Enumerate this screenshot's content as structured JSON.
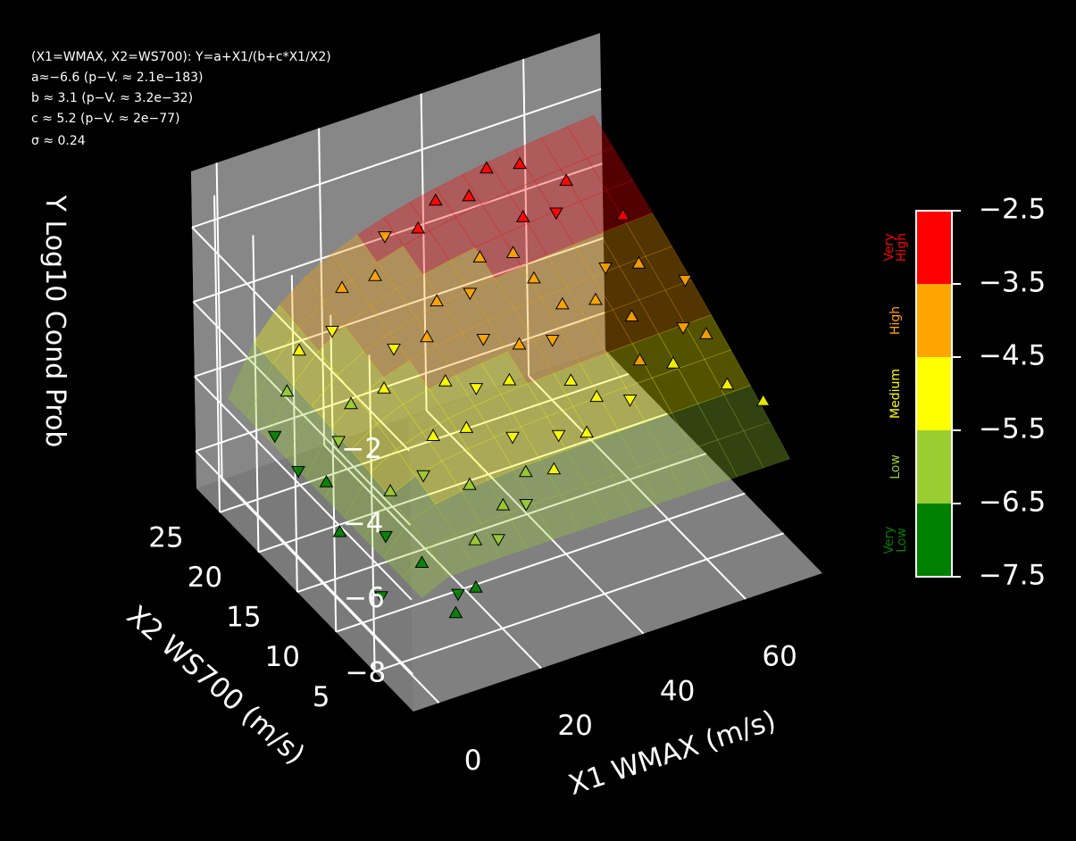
{
  "annotation": {
    "line1": "(X1=WMAX, X2=WS700): Y=a+X1/(b+c*X1/X2)",
    "line2": "a≈−6.6 (p−V. ≈ 2.1e−183)",
    "line3": "b ≈ 3.1 (p−V. ≈ 3.2e−32)",
    "line4": "c ≈ 5.2 (p−V. ≈ 2e−77)",
    "line5": "σ ≈ 0.24"
  },
  "colors": {
    "background": "#000000",
    "pane": "#808080",
    "grid": "#ffffff",
    "very_low": "#008000",
    "low": "#9acd32",
    "medium": "#ffff00",
    "high": "#ffa500",
    "very_high": "#ff0000"
  },
  "chart_data": {
    "type": "scatter",
    "projection": "3d",
    "xlabel": "X1 WMAX (m/s)",
    "ylabel": "X2 WS700 (m/s)",
    "zlabel": "Y Log10 Cond Prob",
    "x_ticks": [
      "0",
      "20",
      "40",
      "60"
    ],
    "y_ticks": [
      "5",
      "10",
      "15",
      "20",
      "25"
    ],
    "z_ticks": [
      "−8",
      "−6",
      "−4",
      "−2"
    ],
    "xlim": [
      -5,
      75
    ],
    "ylim": [
      0,
      28
    ],
    "zlim": [
      -9,
      -0.5
    ],
    "grid": true,
    "model": {
      "formula": "Y=a+X1/(b+c*X1/X2)",
      "a": -6.6,
      "b": 3.1,
      "c": 5.2,
      "sigma": 0.24
    },
    "colorbar": {
      "ticks": [
        "−2.5",
        "−3.5",
        "−4.5",
        "−5.5",
        "−6.5",
        "−7.5"
      ],
      "bands": [
        {
          "label": "Very High",
          "color": "#ff0000",
          "range": [
            -3.5,
            -2.5
          ]
        },
        {
          "label": "High",
          "color": "#ffa500",
          "range": [
            -4.5,
            -3.5
          ]
        },
        {
          "label": "Medium",
          "color": "#ffff00",
          "range": [
            -5.5,
            -4.5
          ]
        },
        {
          "label": "Low",
          "color": "#9acd32",
          "range": [
            -6.5,
            -5.5
          ]
        },
        {
          "label": "Very Low",
          "color": "#008000",
          "range": [
            -7.5,
            -6.5
          ]
        }
      ]
    },
    "points": [
      {
        "x": 8,
        "y": 3,
        "z": -7.6,
        "m": "up"
      },
      {
        "x": 10,
        "y": 4,
        "z": -7.4,
        "m": "down"
      },
      {
        "x": 12,
        "y": 3,
        "z": -7.1,
        "m": "up"
      },
      {
        "x": 6,
        "y": 6,
        "z": -6.8,
        "m": "up"
      },
      {
        "x": 15,
        "y": 5,
        "z": -6.4,
        "m": "up"
      },
      {
        "x": 18,
        "y": 4,
        "z": -6.3,
        "m": "down"
      },
      {
        "x": 22,
        "y": 6,
        "z": -6.0,
        "m": "up"
      },
      {
        "x": 25,
        "y": 5,
        "z": -5.9,
        "m": "down"
      },
      {
        "x": 28,
        "y": 7,
        "z": -5.6,
        "m": "up"
      },
      {
        "x": 32,
        "y": 6,
        "z": -5.5,
        "m": "up"
      },
      {
        "x": 36,
        "y": 8,
        "z": -5.2,
        "m": "down"
      },
      {
        "x": 40,
        "y": 7,
        "z": -5.1,
        "m": "up"
      },
      {
        "x": 45,
        "y": 9,
        "z": -4.8,
        "m": "up"
      },
      {
        "x": 50,
        "y": 8,
        "z": -4.9,
        "m": "down"
      },
      {
        "x": 55,
        "y": 10,
        "z": -4.5,
        "m": "up"
      },
      {
        "x": 60,
        "y": 9,
        "z": -4.6,
        "m": "up"
      },
      {
        "x": 65,
        "y": 11,
        "z": -4.3,
        "m": "down"
      },
      {
        "x": 68,
        "y": 10,
        "z": -4.4,
        "m": "up"
      },
      {
        "x": 5,
        "y": 10,
        "z": -6.9,
        "m": "down"
      },
      {
        "x": 9,
        "y": 12,
        "z": -6.3,
        "m": "up"
      },
      {
        "x": 14,
        "y": 11,
        "z": -5.9,
        "m": "down"
      },
      {
        "x": 19,
        "y": 13,
        "z": -5.5,
        "m": "up"
      },
      {
        "x": 24,
        "y": 12,
        "z": -5.3,
        "m": "up"
      },
      {
        "x": 29,
        "y": 14,
        "z": -4.9,
        "m": "down"
      },
      {
        "x": 34,
        "y": 13,
        "z": -4.7,
        "m": "up"
      },
      {
        "x": 39,
        "y": 15,
        "z": -4.4,
        "m": "up"
      },
      {
        "x": 44,
        "y": 14,
        "z": -4.3,
        "m": "down"
      },
      {
        "x": 49,
        "y": 16,
        "z": -4.0,
        "m": "up"
      },
      {
        "x": 54,
        "y": 15,
        "z": -3.9,
        "m": "up"
      },
      {
        "x": 59,
        "y": 17,
        "z": -3.7,
        "m": "down"
      },
      {
        "x": 64,
        "y": 16,
        "z": -3.6,
        "m": "up"
      },
      {
        "x": 4,
        "y": 17,
        "z": -6.9,
        "m": "up"
      },
      {
        "x": 8,
        "y": 18,
        "z": -6.2,
        "m": "down"
      },
      {
        "x": 12,
        "y": 19,
        "z": -5.6,
        "m": "up"
      },
      {
        "x": 17,
        "y": 18,
        "z": -5.2,
        "m": "up"
      },
      {
        "x": 22,
        "y": 20,
        "z": -4.8,
        "m": "down"
      },
      {
        "x": 27,
        "y": 19,
        "z": -4.5,
        "m": "up"
      },
      {
        "x": 32,
        "y": 21,
        "z": -4.2,
        "m": "up"
      },
      {
        "x": 37,
        "y": 20,
        "z": -4.0,
        "m": "down"
      },
      {
        "x": 42,
        "y": 22,
        "z": -3.7,
        "m": "up"
      },
      {
        "x": 47,
        "y": 21,
        "z": -3.6,
        "m": "up"
      },
      {
        "x": 52,
        "y": 23,
        "z": -3.3,
        "m": "up"
      },
      {
        "x": 57,
        "y": 22,
        "z": -3.2,
        "m": "down"
      },
      {
        "x": 62,
        "y": 24,
        "z": -3.0,
        "m": "up"
      },
      {
        "x": 3,
        "y": 23,
        "z": -6.9,
        "m": "down"
      },
      {
        "x": 7,
        "y": 24,
        "z": -6.1,
        "m": "up"
      },
      {
        "x": 11,
        "y": 25,
        "z": -5.4,
        "m": "up"
      },
      {
        "x": 16,
        "y": 24,
        "z": -4.9,
        "m": "down"
      },
      {
        "x": 21,
        "y": 26,
        "z": -4.4,
        "m": "up"
      },
      {
        "x": 26,
        "y": 25,
        "z": -4.1,
        "m": "up"
      },
      {
        "x": 31,
        "y": 27,
        "z": -3.7,
        "m": "down"
      },
      {
        "x": 36,
        "y": 26,
        "z": -3.5,
        "m": "up"
      },
      {
        "x": 41,
        "y": 27,
        "z": -3.2,
        "m": "up"
      },
      {
        "x": 46,
        "y": 26,
        "z": -3.1,
        "m": "up"
      },
      {
        "x": 51,
        "y": 27,
        "z": -2.8,
        "m": "up"
      },
      {
        "x": 56,
        "y": 26,
        "z": -2.7,
        "m": "up"
      },
      {
        "x": 1,
        "y": 8,
        "z": -7.9,
        "m": "down"
      },
      {
        "x": 2,
        "y": 14,
        "z": -7.5,
        "m": "up"
      },
      {
        "x": 3,
        "y": 20,
        "z": -7.2,
        "m": "down"
      },
      {
        "x": 66,
        "y": 6,
        "z": -4.8,
        "m": "up"
      },
      {
        "x": 70,
        "y": 4,
        "z": -5.0,
        "m": "up"
      },
      {
        "x": 67,
        "y": 20,
        "z": -3.3,
        "m": "up"
      },
      {
        "x": 70,
        "y": 14,
        "z": -3.9,
        "m": "down"
      },
      {
        "x": 20,
        "y": 9,
        "z": -6.0,
        "m": "up"
      },
      {
        "x": 30,
        "y": 10,
        "z": -5.4,
        "m": "down"
      },
      {
        "x": 43,
        "y": 11,
        "z": -4.7,
        "m": "up"
      },
      {
        "x": 58,
        "y": 13,
        "z": -4.1,
        "m": "up"
      },
      {
        "x": 35,
        "y": 17,
        "z": -4.5,
        "m": "down"
      },
      {
        "x": 48,
        "y": 19,
        "z": -3.9,
        "m": "up"
      },
      {
        "x": 26,
        "y": 16,
        "z": -5.0,
        "m": "up"
      }
    ]
  }
}
